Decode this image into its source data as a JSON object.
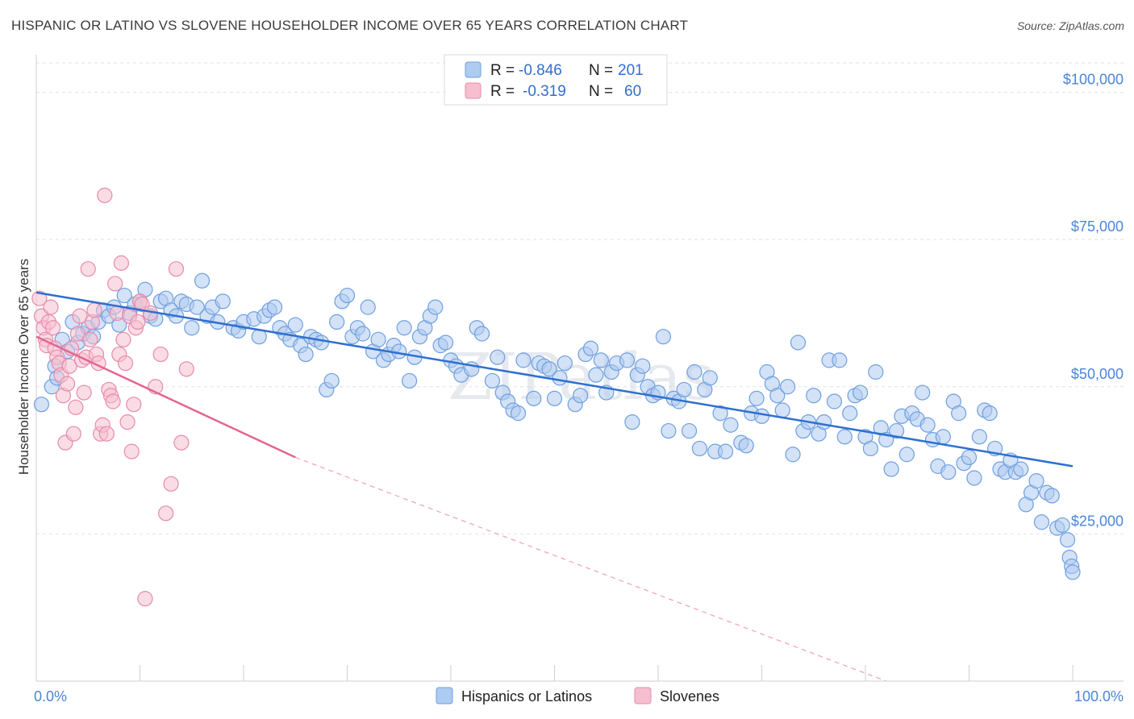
{
  "header": {
    "title": "HISPANIC OR LATINO VS SLOVENE HOUSEHOLDER INCOME OVER 65 YEARS CORRELATION CHART",
    "source": "Source: ZipAtlas.com"
  },
  "watermark": "ZIPatlas",
  "legend": {
    "rows": [
      {
        "r_label": "R =",
        "r_value": "-0.846",
        "n_label": "N =",
        "n_value": "201",
        "color": "#aecbf0",
        "stroke": "#6e9fe0"
      },
      {
        "r_label": "R =",
        "r_value": "-0.319",
        "n_label": "N =",
        "n_value": "60",
        "color": "#f6bfd0",
        "stroke": "#e88aaa"
      }
    ]
  },
  "bottom_legend": [
    {
      "label": "Hispanics or Latinos",
      "color": "#aecbf0",
      "stroke": "#6e9fe0"
    },
    {
      "label": "Slovenes",
      "color": "#f6bfd0",
      "stroke": "#e88aaa"
    }
  ],
  "chart_data": {
    "type": "scatter",
    "title": "HISPANIC OR LATINO VS SLOVENE HOUSEHOLDER INCOME OVER 65 YEARS CORRELATION CHART",
    "ylabel": "Householder Income Over 65 years",
    "xlabel": "",
    "xlim": [
      0,
      100
    ],
    "ylim": [
      0,
      105000
    ],
    "x_tick_labels": [
      "0.0%",
      "100.0%"
    ],
    "y_ticks": [
      25000,
      50000,
      75000,
      100000
    ],
    "y_tick_labels": [
      "$25,000",
      "$50,000",
      "$75,000",
      "$100,000"
    ],
    "grid": true,
    "legend_position": "top-center",
    "series": [
      {
        "name": "Hispanics or Latinos",
        "color": "#6e9fe0",
        "fill": "#aecbf0",
        "trend": {
          "x": [
            0,
            100
          ],
          "y": [
            66000,
            36500
          ],
          "style": "solid"
        },
        "points": [
          [
            0.5,
            47000
          ],
          [
            1.5,
            50000
          ],
          [
            1.8,
            53500
          ],
          [
            2.0,
            51500
          ],
          [
            2.5,
            58000
          ],
          [
            3.0,
            56000
          ],
          [
            3.5,
            61000
          ],
          [
            4.0,
            57500
          ],
          [
            4.5,
            59000
          ],
          [
            5.0,
            60000
          ],
          [
            5.5,
            58500
          ],
          [
            6.0,
            61000
          ],
          [
            6.5,
            63000
          ],
          [
            7.0,
            62000
          ],
          [
            7.5,
            63500
          ],
          [
            8.0,
            60500
          ],
          [
            8.5,
            65500
          ],
          [
            9.0,
            62500
          ],
          [
            9.5,
            64000
          ],
          [
            10.0,
            64500
          ],
          [
            10.5,
            66500
          ],
          [
            11.0,
            62000
          ],
          [
            11.5,
            61500
          ],
          [
            12.0,
            64500
          ],
          [
            12.5,
            65000
          ],
          [
            13.0,
            63000
          ],
          [
            13.5,
            62000
          ],
          [
            14.0,
            64500
          ],
          [
            14.5,
            64000
          ],
          [
            15.0,
            60000
          ],
          [
            15.5,
            63500
          ],
          [
            16.0,
            68000
          ],
          [
            16.5,
            62000
          ],
          [
            17.0,
            63500
          ],
          [
            17.5,
            61000
          ],
          [
            18.0,
            64500
          ],
          [
            19.0,
            60000
          ],
          [
            19.5,
            59500
          ],
          [
            20.0,
            61000
          ],
          [
            21.0,
            61500
          ],
          [
            21.5,
            58500
          ],
          [
            22.0,
            62000
          ],
          [
            22.5,
            63000
          ],
          [
            23.0,
            63500
          ],
          [
            23.5,
            60000
          ],
          [
            24.0,
            59000
          ],
          [
            24.5,
            58000
          ],
          [
            25.0,
            60500
          ],
          [
            25.5,
            57000
          ],
          [
            26.0,
            55500
          ],
          [
            26.5,
            58500
          ],
          [
            27.0,
            58000
          ],
          [
            27.5,
            57500
          ],
          [
            28.0,
            49500
          ],
          [
            28.5,
            51000
          ],
          [
            29.0,
            61000
          ],
          [
            29.5,
            64500
          ],
          [
            30.0,
            65500
          ],
          [
            30.5,
            58500
          ],
          [
            31.0,
            60000
          ],
          [
            31.5,
            59000
          ],
          [
            32.0,
            63500
          ],
          [
            32.5,
            56000
          ],
          [
            33.0,
            58000
          ],
          [
            33.5,
            54500
          ],
          [
            34.0,
            55500
          ],
          [
            34.5,
            57000
          ],
          [
            35.0,
            56000
          ],
          [
            35.5,
            60000
          ],
          [
            36.0,
            51000
          ],
          [
            36.5,
            55000
          ],
          [
            37.0,
            58500
          ],
          [
            37.5,
            60000
          ],
          [
            38.0,
            62000
          ],
          [
            38.5,
            63500
          ],
          [
            39.0,
            57000
          ],
          [
            39.5,
            57500
          ],
          [
            40.0,
            54500
          ],
          [
            40.5,
            53500
          ],
          [
            41.0,
            52000
          ],
          [
            42.0,
            53000
          ],
          [
            42.5,
            60000
          ],
          [
            43.0,
            59000
          ],
          [
            44.0,
            51000
          ],
          [
            44.5,
            55000
          ],
          [
            45.0,
            49000
          ],
          [
            45.5,
            47500
          ],
          [
            46.0,
            46000
          ],
          [
            46.5,
            45500
          ],
          [
            47.0,
            54500
          ],
          [
            48.0,
            48000
          ],
          [
            48.5,
            54000
          ],
          [
            49.0,
            53500
          ],
          [
            49.5,
            53000
          ],
          [
            50.0,
            48000
          ],
          [
            50.5,
            51500
          ],
          [
            51.0,
            54000
          ],
          [
            52.0,
            47000
          ],
          [
            52.5,
            48500
          ],
          [
            53.0,
            55500
          ],
          [
            53.5,
            56500
          ],
          [
            54.0,
            52000
          ],
          [
            54.5,
            54500
          ],
          [
            55.0,
            49000
          ],
          [
            55.5,
            52500
          ],
          [
            56.0,
            54000
          ],
          [
            57.0,
            54500
          ],
          [
            57.5,
            44000
          ],
          [
            58.0,
            52000
          ],
          [
            58.5,
            53500
          ],
          [
            59.0,
            50000
          ],
          [
            59.5,
            48500
          ],
          [
            60.0,
            49000
          ],
          [
            60.5,
            58500
          ],
          [
            61.0,
            42500
          ],
          [
            61.5,
            48000
          ],
          [
            62.0,
            47500
          ],
          [
            62.5,
            49500
          ],
          [
            63.0,
            42500
          ],
          [
            63.5,
            52500
          ],
          [
            64.0,
            39500
          ],
          [
            64.5,
            49500
          ],
          [
            65.0,
            51500
          ],
          [
            65.5,
            39000
          ],
          [
            66.0,
            45500
          ],
          [
            66.5,
            39000
          ],
          [
            67.0,
            43500
          ],
          [
            68.0,
            40500
          ],
          [
            68.5,
            40000
          ],
          [
            69.0,
            45500
          ],
          [
            69.5,
            48000
          ],
          [
            70.0,
            45000
          ],
          [
            70.5,
            52500
          ],
          [
            71.0,
            50500
          ],
          [
            71.5,
            48500
          ],
          [
            72.0,
            46000
          ],
          [
            72.5,
            50000
          ],
          [
            73.0,
            38500
          ],
          [
            73.5,
            57500
          ],
          [
            74.0,
            42500
          ],
          [
            74.5,
            44000
          ],
          [
            75.0,
            48500
          ],
          [
            75.5,
            42000
          ],
          [
            76.0,
            44000
          ],
          [
            76.5,
            54500
          ],
          [
            77.0,
            47500
          ],
          [
            77.5,
            54500
          ],
          [
            78.0,
            41500
          ],
          [
            78.5,
            45500
          ],
          [
            79.0,
            48500
          ],
          [
            79.5,
            49000
          ],
          [
            80.0,
            41500
          ],
          [
            80.5,
            39500
          ],
          [
            81.0,
            52500
          ],
          [
            81.5,
            43000
          ],
          [
            82.0,
            41000
          ],
          [
            82.5,
            36000
          ],
          [
            83.0,
            42500
          ],
          [
            83.5,
            45000
          ],
          [
            84.0,
            38500
          ],
          [
            84.5,
            45500
          ],
          [
            85.0,
            44500
          ],
          [
            85.5,
            49000
          ],
          [
            86.0,
            43500
          ],
          [
            86.5,
            41000
          ],
          [
            87.0,
            36500
          ],
          [
            87.5,
            41500
          ],
          [
            88.0,
            35500
          ],
          [
            88.5,
            47500
          ],
          [
            89.0,
            45500
          ],
          [
            89.5,
            37000
          ],
          [
            90.0,
            38000
          ],
          [
            90.5,
            34500
          ],
          [
            91.0,
            41500
          ],
          [
            91.5,
            46000
          ],
          [
            92.0,
            45500
          ],
          [
            92.5,
            39500
          ],
          [
            93.0,
            36000
          ],
          [
            93.5,
            35500
          ],
          [
            94.0,
            37500
          ],
          [
            94.5,
            35500
          ],
          [
            95.0,
            36000
          ],
          [
            95.5,
            30000
          ],
          [
            96.0,
            32000
          ],
          [
            96.5,
            34000
          ],
          [
            97.0,
            27000
          ],
          [
            97.5,
            32000
          ],
          [
            98.0,
            31500
          ],
          [
            98.5,
            26000
          ],
          [
            99.0,
            26500
          ],
          [
            99.5,
            24000
          ],
          [
            99.7,
            21000
          ],
          [
            99.9,
            19500
          ],
          [
            100.0,
            18500
          ]
        ]
      },
      {
        "name": "Slovenes",
        "color": "#e88aaa",
        "fill": "#f6bfd0",
        "trend": {
          "x": [
            0,
            25
          ],
          "y": [
            58500,
            38000
          ],
          "style": "solid",
          "dashed_extension_to": [
            100,
            -12000
          ]
        },
        "points": [
          [
            0.3,
            65000
          ],
          [
            0.5,
            62000
          ],
          [
            0.7,
            60000
          ],
          [
            0.9,
            58000
          ],
          [
            1.0,
            57000
          ],
          [
            1.2,
            61000
          ],
          [
            1.4,
            63500
          ],
          [
            1.6,
            60000
          ],
          [
            1.8,
            56500
          ],
          [
            2.0,
            55000
          ],
          [
            2.2,
            54000
          ],
          [
            2.4,
            52000
          ],
          [
            2.6,
            48500
          ],
          [
            2.8,
            40500
          ],
          [
            3.0,
            50500
          ],
          [
            3.2,
            53500
          ],
          [
            3.4,
            56500
          ],
          [
            3.6,
            42000
          ],
          [
            3.8,
            46500
          ],
          [
            4.0,
            59000
          ],
          [
            4.2,
            62000
          ],
          [
            4.4,
            54500
          ],
          [
            4.6,
            49000
          ],
          [
            4.8,
            55000
          ],
          [
            5.0,
            70000
          ],
          [
            5.2,
            58000
          ],
          [
            5.4,
            61000
          ],
          [
            5.6,
            63000
          ],
          [
            5.8,
            55500
          ],
          [
            6.0,
            54000
          ],
          [
            6.2,
            42000
          ],
          [
            6.4,
            43500
          ],
          [
            6.6,
            82500
          ],
          [
            6.8,
            42000
          ],
          [
            7.0,
            49500
          ],
          [
            7.2,
            48500
          ],
          [
            7.4,
            47500
          ],
          [
            7.6,
            67500
          ],
          [
            7.8,
            62500
          ],
          [
            8.0,
            55500
          ],
          [
            8.2,
            71000
          ],
          [
            8.4,
            58000
          ],
          [
            8.6,
            54000
          ],
          [
            8.8,
            44000
          ],
          [
            9.0,
            62000
          ],
          [
            9.2,
            39000
          ],
          [
            9.4,
            47000
          ],
          [
            9.6,
            60000
          ],
          [
            9.8,
            61000
          ],
          [
            10.0,
            64500
          ],
          [
            10.2,
            64000
          ],
          [
            10.5,
            14000
          ],
          [
            11.0,
            62500
          ],
          [
            11.5,
            50000
          ],
          [
            12.0,
            55500
          ],
          [
            12.5,
            28500
          ],
          [
            13.0,
            33500
          ],
          [
            13.5,
            70000
          ],
          [
            14.0,
            40500
          ],
          [
            14.5,
            53000
          ]
        ]
      }
    ]
  }
}
